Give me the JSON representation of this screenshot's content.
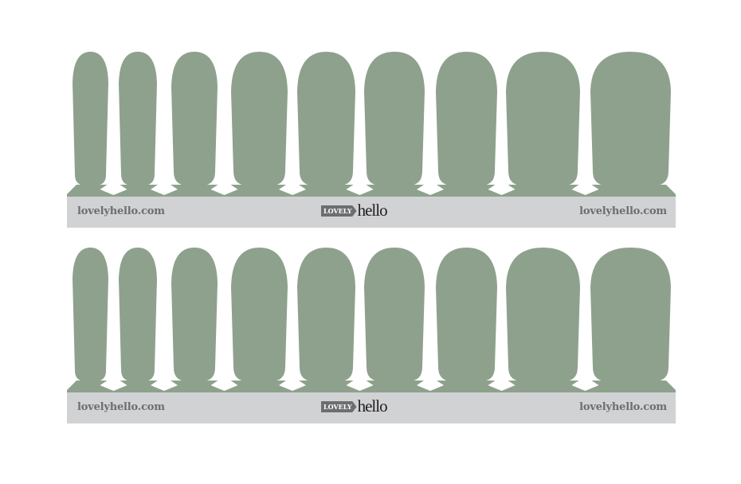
{
  "colors": {
    "nail": "#8ea18d",
    "strip": "#d1d2d4",
    "text": "#6d6e70"
  },
  "sheets": [
    {
      "left_url": "lovelyhello.com",
      "right_url": "lovelyhello.com",
      "logo": {
        "tag": "LOVELY",
        "word": "hello"
      },
      "nail_count": 9
    },
    {
      "left_url": "lovelyhello.com",
      "right_url": "lovelyhello.com",
      "logo": {
        "tag": "LOVELY",
        "word": "hello"
      },
      "nail_count": 9
    }
  ]
}
